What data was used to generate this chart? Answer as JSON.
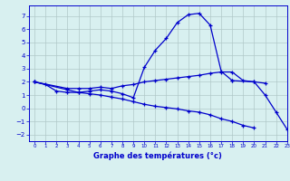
{
  "xlabel": "Graphe des températures (°c)",
  "background_color": "#d8f0f0",
  "grid_color": "#b0c8c8",
  "line_color": "#0000cc",
  "xlim": [
    -0.5,
    23
  ],
  "ylim": [
    -2.5,
    7.8
  ],
  "yticks": [
    -2,
    -1,
    0,
    1,
    2,
    3,
    4,
    5,
    6,
    7
  ],
  "xticks": [
    0,
    1,
    2,
    3,
    4,
    5,
    6,
    7,
    8,
    9,
    10,
    11,
    12,
    13,
    14,
    15,
    16,
    17,
    18,
    19,
    20,
    21,
    22,
    23
  ],
  "line_top_x": [
    0,
    1,
    2,
    3,
    4,
    5,
    6,
    7,
    8,
    9,
    10,
    11,
    12,
    13,
    14,
    15,
    16,
    17,
    18
  ],
  "line_top_y": [
    2.0,
    1.8,
    1.3,
    1.2,
    1.2,
    1.3,
    1.4,
    1.3,
    1.1,
    0.8,
    3.1,
    4.4,
    5.3,
    6.5,
    7.1,
    7.2,
    6.3,
    2.8,
    2.1
  ],
  "line_mid_x": [
    0,
    3,
    4,
    5,
    6,
    7,
    8,
    9,
    10,
    11,
    12,
    13,
    14,
    15,
    16,
    17,
    18,
    19,
    20,
    21
  ],
  "line_mid_y": [
    2.0,
    1.5,
    1.5,
    1.5,
    1.6,
    1.5,
    1.7,
    1.8,
    2.0,
    2.1,
    2.2,
    2.3,
    2.4,
    2.5,
    2.65,
    2.75,
    2.75,
    2.1,
    2.0,
    1.9
  ],
  "line_low_x": [
    0,
    3,
    4,
    5,
    6,
    7,
    8,
    9,
    10,
    11,
    12,
    13,
    14,
    15,
    16,
    17,
    18,
    19,
    20
  ],
  "line_low_y": [
    2.0,
    1.4,
    1.2,
    1.1,
    1.0,
    0.85,
    0.7,
    0.5,
    0.3,
    0.15,
    0.05,
    -0.05,
    -0.2,
    -0.3,
    -0.5,
    -0.8,
    -1.0,
    -1.3,
    -1.5
  ],
  "line_bot_x": [
    18,
    20,
    21,
    22,
    23
  ],
  "line_bot_y": [
    2.1,
    2.0,
    1.0,
    -0.3,
    -1.6
  ]
}
